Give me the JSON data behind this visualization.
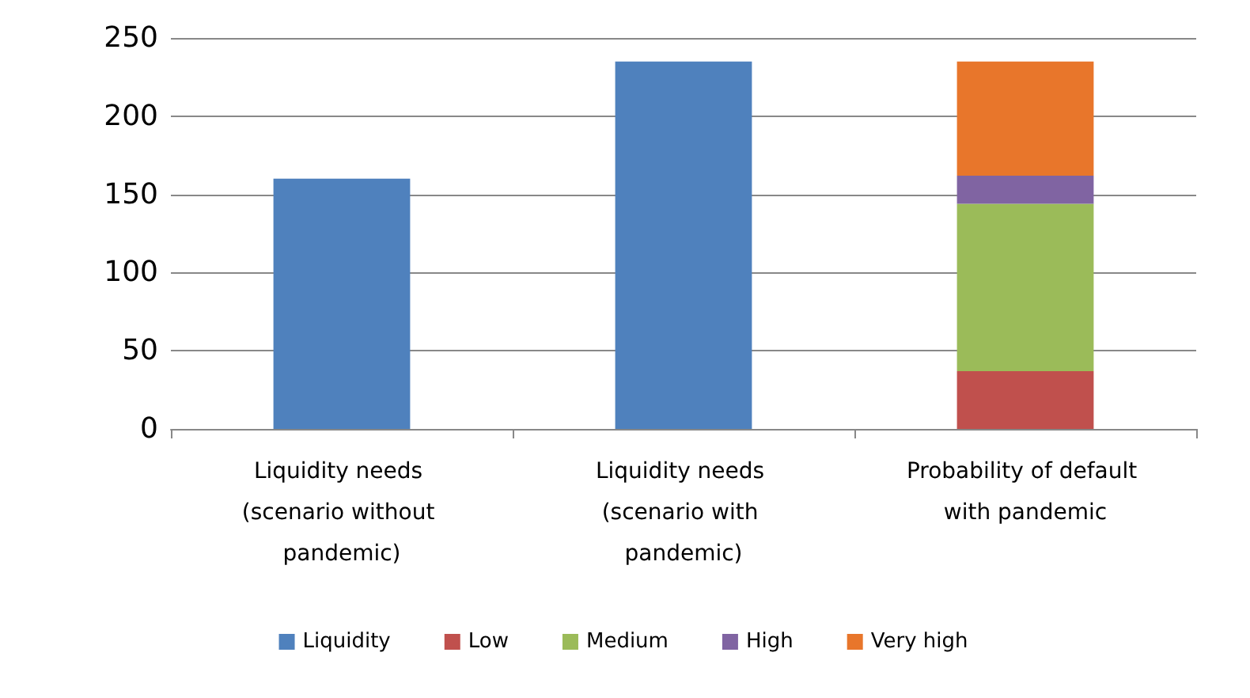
{
  "chart_data": {
    "type": "bar",
    "stacked": true,
    "categories": [
      "Liquidity needs (scenario without pandemic)",
      "Liquidity needs (scenario with pandemic)",
      "Probability of default with pandemic"
    ],
    "series": [
      {
        "name": "Liquidity",
        "color": "#4f81bd",
        "values": [
          160,
          235,
          null
        ]
      },
      {
        "name": "Low",
        "color": "#c0504d",
        "values": [
          null,
          null,
          37
        ]
      },
      {
        "name": "Medium",
        "color": "#9bbb59",
        "values": [
          null,
          null,
          107
        ]
      },
      {
        "name": "High",
        "color": "#8064a2",
        "values": [
          null,
          null,
          18
        ]
      },
      {
        "name": "Very high",
        "color": "#e8762b",
        "values": [
          null,
          null,
          73
        ]
      }
    ],
    "ylim": [
      0,
      250
    ],
    "yticks": [
      0,
      50,
      100,
      150,
      200,
      250
    ],
    "grid": "y",
    "legend": "bottom"
  }
}
